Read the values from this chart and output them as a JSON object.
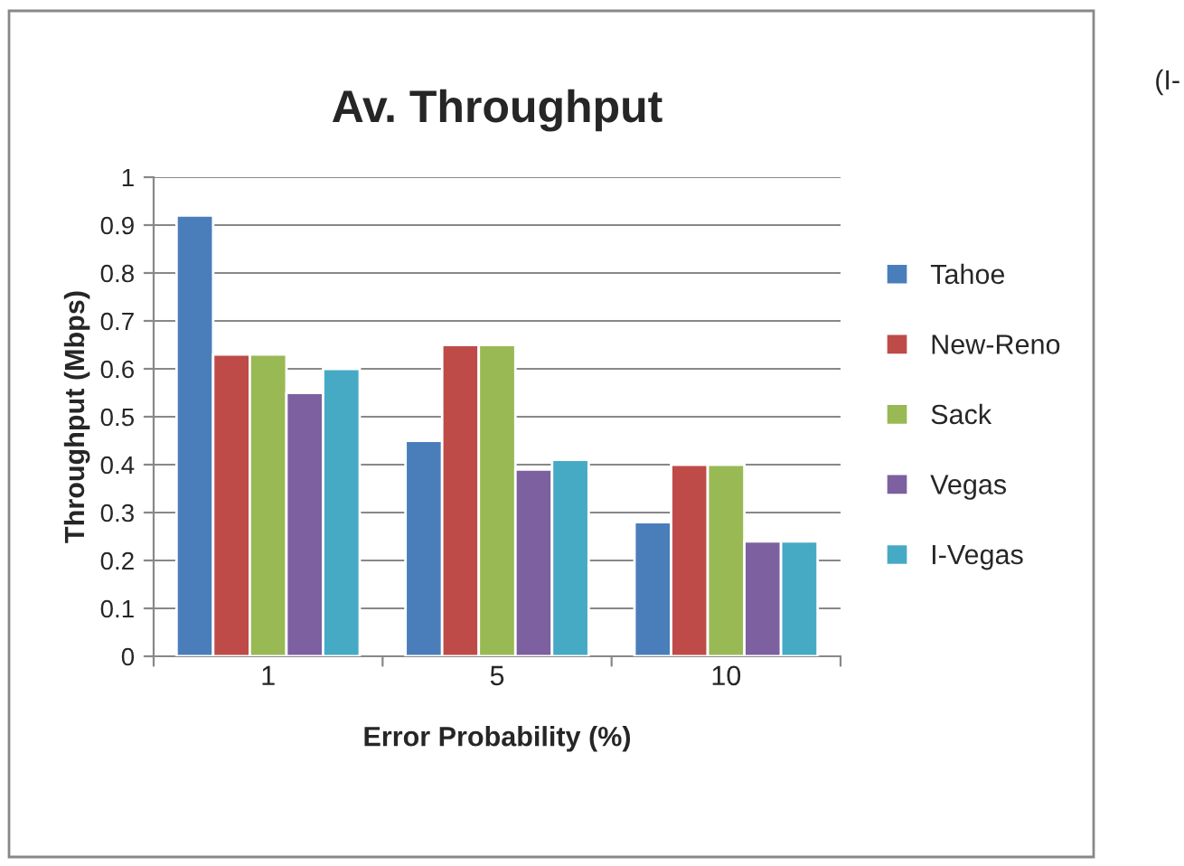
{
  "chart_data": {
    "type": "bar",
    "title": "Av. Throughput",
    "xlabel": "Error Probability (%)",
    "ylabel": "Throughput (Mbps)",
    "categories": [
      "1",
      "5",
      "10"
    ],
    "series": [
      {
        "name": "Tahoe",
        "color": "#4a7ebb",
        "values": [
          0.92,
          0.45,
          0.28
        ]
      },
      {
        "name": "New-Reno",
        "color": "#be4b48",
        "values": [
          0.63,
          0.65,
          0.4
        ]
      },
      {
        "name": "Sack",
        "color": "#98b954",
        "values": [
          0.63,
          0.65,
          0.4
        ]
      },
      {
        "name": "Vegas",
        "color": "#7d60a0",
        "values": [
          0.55,
          0.39,
          0.24
        ]
      },
      {
        "name": "I-Vegas",
        "color": "#46aac5",
        "values": [
          0.6,
          0.41,
          0.24
        ]
      }
    ],
    "ylim": [
      0,
      1
    ],
    "yticks": [
      0,
      0.1,
      0.2,
      0.3,
      0.4,
      0.5,
      0.6,
      0.7,
      0.8,
      0.9,
      1
    ],
    "grid": "y",
    "legend": "right",
    "annotations": [
      "(I-"
    ]
  }
}
